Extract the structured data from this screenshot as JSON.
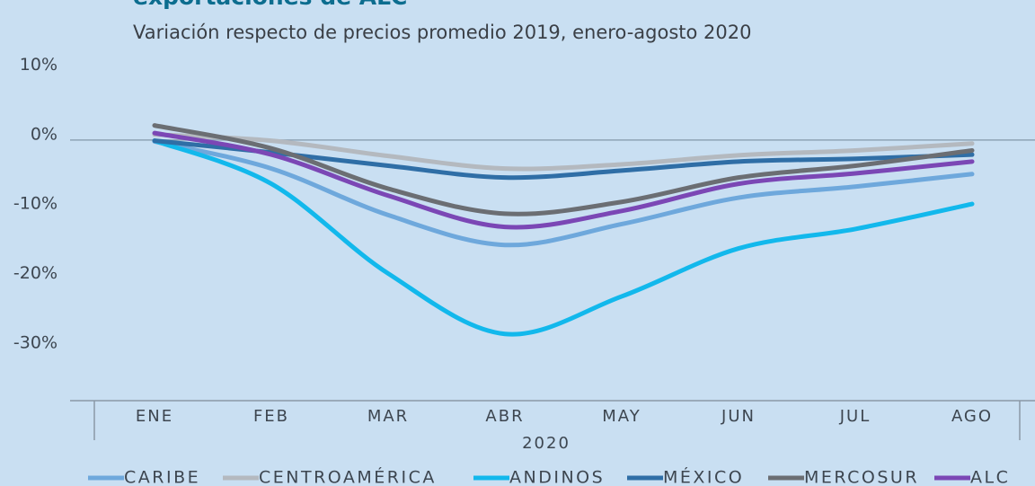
{
  "chart_data": {
    "type": "line",
    "title": "exportaciones de ALC",
    "subtitle": "Variación respecto de precios promedio 2019, enero-agosto 2020",
    "x_label": "2020",
    "categories": [
      "ENE",
      "FEB",
      "MAR",
      "ABR",
      "MAY",
      "JUN",
      "JUL",
      "AGO"
    ],
    "series": [
      {
        "name": "CARIBE",
        "color": "#6ea8dc",
        "values": [
          -0.2,
          -4.1,
          -10.8,
          -15.1,
          -12.1,
          -8.3,
          -6.7,
          -4.9
        ]
      },
      {
        "name": "CENTROAMÉRICA",
        "color": "#b4b9bf",
        "values": [
          0.8,
          -0.1,
          -2.3,
          -4.1,
          -3.5,
          -2.2,
          -1.5,
          -0.5
        ]
      },
      {
        "name": "ANDINOS",
        "color": "#12b8ec",
        "values": [
          -0.1,
          -6.3,
          -19.2,
          -27.9,
          -22.5,
          -15.6,
          -12.8,
          -9.2
        ]
      },
      {
        "name": "MÉXICO",
        "color": "#2f6ea6",
        "values": [
          -0.1,
          -1.8,
          -3.7,
          -5.4,
          -4.4,
          -3.1,
          -2.7,
          -2.1
        ]
      },
      {
        "name": "MERCOSUR",
        "color": "#6b6e73",
        "values": [
          2.1,
          -1.2,
          -7.0,
          -10.6,
          -8.9,
          -5.4,
          -3.7,
          -1.5
        ]
      },
      {
        "name": "ALC",
        "color": "#7b47b5",
        "values": [
          1.0,
          -2.1,
          -8.0,
          -12.5,
          -10.2,
          -6.3,
          -4.8,
          -3.1
        ]
      }
    ],
    "ylim": [
      -37.5,
      10
    ],
    "yticks": [
      {
        "value": 10,
        "label": "10%"
      },
      {
        "value": 0,
        "label": "0%"
      },
      {
        "value": -10,
        "label": "-10%"
      },
      {
        "value": -20,
        "label": "-20%"
      },
      {
        "value": -30,
        "label": "-30%"
      }
    ],
    "zero_line": true,
    "legend": "bottom"
  }
}
